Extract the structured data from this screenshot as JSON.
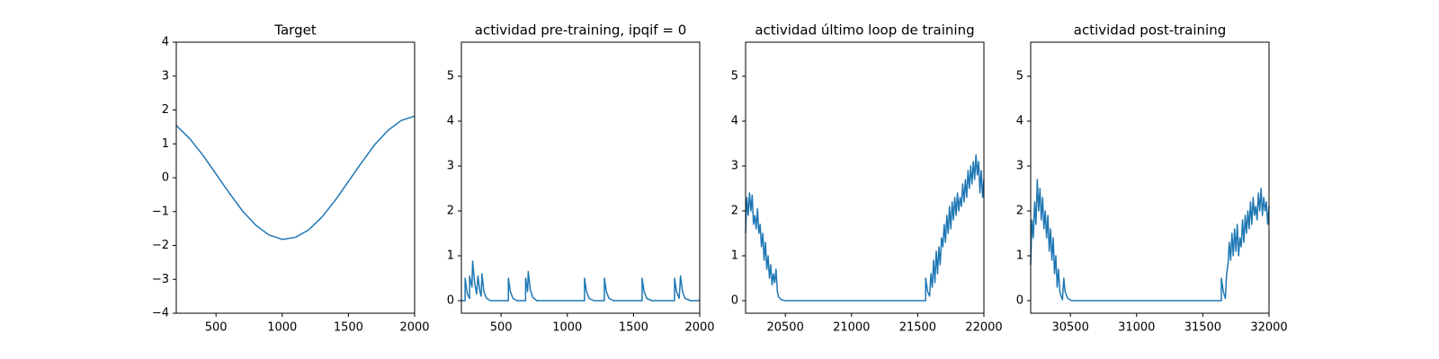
{
  "chart_data": [
    {
      "type": "line",
      "title": "Target",
      "x": [
        200,
        300,
        400,
        500,
        600,
        700,
        800,
        900,
        1000,
        1100,
        1200,
        1300,
        1400,
        1500,
        1600,
        1700,
        1800,
        1900,
        2000
      ],
      "series": [
        {
          "color": "#1f77b4",
          "values": [
            1.54,
            1.16,
            0.67,
            0.11,
            -0.45,
            -0.98,
            -1.4,
            -1.69,
            -1.82,
            -1.76,
            -1.54,
            -1.16,
            -0.67,
            -0.11,
            0.45,
            0.98,
            1.4,
            1.69,
            1.82
          ]
        }
      ],
      "xlim": [
        200,
        2000
      ],
      "ylim": [
        -4,
        4
      ],
      "xticks": [
        500,
        1000,
        1500,
        2000
      ],
      "yticks": [
        {
          "value": -4,
          "label": "−4"
        },
        {
          "value": -3,
          "label": "−3"
        },
        {
          "value": -2,
          "label": "−2"
        },
        {
          "value": -1,
          "label": "−1"
        },
        0,
        1,
        2,
        3,
        4
      ]
    },
    {
      "type": "line",
      "title": "actividad pre-training, ipqif = 0",
      "x": [
        200,
        228,
        228,
        245,
        262,
        262,
        280,
        285,
        300,
        315,
        325,
        340,
        350,
        355,
        370,
        390,
        420,
        555,
        555,
        570,
        590,
        620,
        685,
        685,
        700,
        705,
        720,
        740,
        770,
        1130,
        1130,
        1145,
        1165,
        1200,
        1280,
        1280,
        1295,
        1315,
        1350,
        1565,
        1565,
        1580,
        1600,
        1640,
        1810,
        1810,
        1825,
        1845,
        1855,
        1870,
        1890,
        1930,
        2000
      ],
      "series": [
        {
          "color": "#1f77b4",
          "values": [
            0,
            0,
            0.5,
            0.15,
            0.05,
            0.55,
            0.3,
            0.88,
            0.4,
            0.15,
            0.55,
            0.2,
            0.1,
            0.6,
            0.2,
            0.05,
            0,
            0,
            0.5,
            0.2,
            0.05,
            0,
            0,
            0.5,
            0.2,
            0.65,
            0.25,
            0.07,
            0,
            0,
            0.5,
            0.2,
            0.05,
            0,
            0,
            0.5,
            0.2,
            0.05,
            0,
            0,
            0.5,
            0.2,
            0.05,
            0,
            0,
            0.5,
            0.2,
            0.05,
            0.55,
            0.2,
            0.05,
            0,
            0
          ]
        }
      ],
      "xlim": [
        200,
        2000
      ],
      "ylim": [
        -0.28,
        5.76
      ],
      "xticks": [
        500,
        1000,
        1500,
        2000
      ],
      "yticks": [
        0,
        1,
        2,
        3,
        4,
        5
      ]
    },
    {
      "type": "line",
      "title": "actividad último loop de training",
      "x": [
        20200,
        20210,
        20220,
        20230,
        20240,
        20250,
        20260,
        20270,
        20280,
        20290,
        20300,
        20310,
        20320,
        20330,
        20340,
        20350,
        20360,
        20370,
        20380,
        20390,
        20400,
        20410,
        20420,
        20430,
        20440,
        20450,
        20470,
        20500,
        21560,
        21560,
        21575,
        21590,
        21600,
        21610,
        21620,
        21630,
        21640,
        21650,
        21660,
        21670,
        21680,
        21690,
        21700,
        21710,
        21720,
        21730,
        21740,
        21750,
        21760,
        21770,
        21780,
        21790,
        21800,
        21810,
        21820,
        21830,
        21840,
        21850,
        21860,
        21870,
        21880,
        21890,
        21900,
        21910,
        21920,
        21930,
        21940,
        21950,
        21960,
        21970,
        21980,
        21990,
        22000
      ],
      "series": [
        {
          "color": "#1f77b4",
          "values": [
            1.5,
            2.3,
            1.9,
            2.4,
            2.0,
            2.35,
            1.7,
            1.9,
            1.6,
            2.05,
            1.5,
            1.7,
            1.2,
            1.5,
            0.9,
            1.3,
            0.7,
            1.0,
            0.5,
            0.8,
            0.35,
            0.6,
            0.4,
            0.7,
            0.2,
            0.08,
            0.02,
            0,
            0,
            0.5,
            0.2,
            0.1,
            0.6,
            0.3,
            0.9,
            0.4,
            1.1,
            0.6,
            1.2,
            0.8,
            1.4,
            1.2,
            1.7,
            1.3,
            1.9,
            1.5,
            2.1,
            1.6,
            2.2,
            1.8,
            2.3,
            1.9,
            2.4,
            2.0,
            2.3,
            2.1,
            2.6,
            2.2,
            2.7,
            2.3,
            2.9,
            2.5,
            3.0,
            2.6,
            3.1,
            2.7,
            3.25,
            2.8,
            3.1,
            2.4,
            2.9,
            2.3,
            2.7
          ]
        }
      ],
      "xlim": [
        20200,
        22000
      ],
      "ylim": [
        -0.28,
        5.76
      ],
      "xticks": [
        20500,
        21000,
        21500,
        22000
      ],
      "yticks": [
        0,
        1,
        2,
        3,
        4,
        5
      ]
    },
    {
      "type": "line",
      "title": "actividad post-training",
      "x": [
        30200,
        30210,
        30220,
        30230,
        30240,
        30250,
        30260,
        30270,
        30280,
        30290,
        30300,
        30310,
        30320,
        30330,
        30340,
        30350,
        30360,
        30370,
        30380,
        30390,
        30400,
        30410,
        30420,
        30430,
        30440,
        30450,
        30460,
        30480,
        30510,
        31640,
        31640,
        31655,
        31670,
        31680,
        31690,
        31700,
        31710,
        31720,
        31730,
        31740,
        31750,
        31760,
        31770,
        31780,
        31790,
        31800,
        31810,
        31820,
        31830,
        31840,
        31850,
        31860,
        31870,
        31880,
        31890,
        31900,
        31910,
        31920,
        31930,
        31940,
        31950,
        31960,
        31970,
        31980,
        31990,
        32000
      ],
      "series": [
        {
          "color": "#1f77b4",
          "values": [
            0.8,
            1.8,
            1.4,
            2.2,
            1.7,
            2.7,
            2.0,
            2.5,
            1.8,
            2.3,
            1.6,
            2.0,
            1.4,
            1.9,
            1.1,
            1.6,
            0.9,
            1.4,
            0.6,
            1.0,
            0.3,
            0.7,
            0.2,
            0.1,
            0.02,
            0.5,
            0.2,
            0.05,
            0,
            0,
            0.5,
            0.2,
            0.05,
            0.6,
            0.8,
            1.3,
            0.9,
            1.5,
            1.0,
            1.6,
            1.1,
            1.7,
            1.0,
            1.4,
            1.2,
            1.8,
            1.3,
            1.9,
            1.5,
            2.0,
            1.6,
            2.2,
            1.7,
            2.3,
            1.9,
            2.1,
            1.8,
            2.4,
            2.0,
            2.5,
            1.9,
            2.3,
            2.0,
            2.2,
            1.7,
            2.1
          ]
        }
      ],
      "xlim": [
        30200,
        32000
      ],
      "ylim": [
        -0.28,
        5.76
      ],
      "xticks": [
        30500,
        31000,
        31500,
        32000
      ],
      "yticks": [
        0,
        1,
        2,
        3,
        4,
        5
      ]
    }
  ]
}
